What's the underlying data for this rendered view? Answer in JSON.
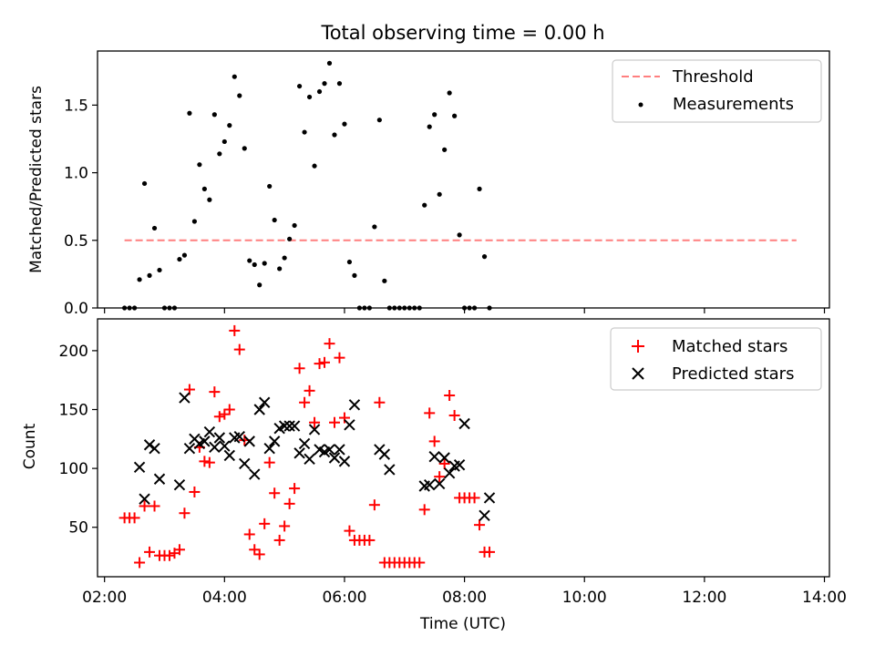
{
  "chart_data": [
    {
      "type": "scatter",
      "title": "Total observing time = 0.00 h",
      "xlabel": "",
      "ylabel": "Matched/Predicted stars",
      "xlim": [
        "01:53",
        "14:05"
      ],
      "ylim": [
        0,
        1.9
      ],
      "x_ticks": [
        "02:00",
        "04:00",
        "06:00",
        "08:00",
        "10:00",
        "12:00",
        "14:00"
      ],
      "y_ticks": [
        "0.0",
        "0.5",
        "1.0",
        "1.5"
      ],
      "legend": {
        "position": "top-right"
      },
      "threshold": {
        "name": "Threshold",
        "value": 0.5,
        "x_start": "02:20",
        "x_end": "13:32",
        "color": "#ff7f7f"
      },
      "series": [
        {
          "name": "Measurements",
          "color": "#000000",
          "x": [
            "02:20",
            "02:25",
            "02:30",
            "02:35",
            "02:40",
            "02:45",
            "02:50",
            "02:55",
            "03:00",
            "03:05",
            "03:10",
            "03:15",
            "03:20",
            "03:25",
            "03:30",
            "03:35",
            "03:40",
            "03:45",
            "03:50",
            "03:55",
            "04:00",
            "04:05",
            "04:10",
            "04:15",
            "04:20",
            "04:25",
            "04:30",
            "04:35",
            "04:40",
            "04:45",
            "04:50",
            "04:55",
            "05:00",
            "05:05",
            "05:10",
            "05:15",
            "05:20",
            "05:25",
            "05:30",
            "05:35",
            "05:40",
            "05:45",
            "05:50",
            "05:55",
            "06:00",
            "06:05",
            "06:10",
            "06:15",
            "06:20",
            "06:25",
            "06:30",
            "06:35",
            "06:40",
            "06:45",
            "06:50",
            "06:55",
            "07:00",
            "07:05",
            "07:10",
            "07:15",
            "07:20",
            "07:25",
            "07:30",
            "07:35",
            "07:40",
            "07:45",
            "07:50",
            "07:55",
            "08:00",
            "08:05",
            "08:10",
            "08:15",
            "08:20",
            "08:25"
          ],
          "y": [
            0.0,
            0.0,
            0.0,
            0.21,
            0.92,
            0.24,
            0.59,
            0.28,
            0.0,
            0.0,
            0.0,
            0.36,
            0.39,
            1.44,
            0.64,
            1.06,
            0.88,
            0.8,
            1.43,
            1.14,
            1.23,
            1.35,
            1.71,
            1.57,
            1.18,
            0.35,
            0.32,
            0.17,
            0.33,
            0.9,
            0.65,
            0.29,
            0.37,
            0.51,
            0.61,
            1.64,
            1.3,
            1.56,
            1.05,
            1.6,
            1.66,
            1.81,
            1.28,
            1.66,
            1.36,
            0.34,
            0.24,
            0.0,
            0.0,
            0.0,
            0.6,
            1.39,
            0.2,
            0.0,
            0.0,
            0.0,
            0.0,
            0.0,
            0.0,
            0.0,
            0.76,
            1.34,
            1.43,
            0.84,
            1.17,
            1.59,
            1.42,
            0.54,
            0.0,
            0.0,
            0.0,
            0.88,
            0.38,
            0.0
          ]
        }
      ]
    },
    {
      "type": "scatter",
      "title": "",
      "xlabel": "Time (UTC)",
      "ylabel": "Count",
      "xlim": [
        "01:53",
        "14:05"
      ],
      "ylim": [
        8,
        227
      ],
      "x_ticks": [
        "02:00",
        "04:00",
        "06:00",
        "08:00",
        "10:00",
        "12:00",
        "14:00"
      ],
      "y_ticks": [
        "50",
        "100",
        "150",
        "200"
      ],
      "legend": {
        "position": "top-right"
      },
      "series": [
        {
          "name": "Matched stars",
          "marker": "plus",
          "color": "#ff0000",
          "x": [
            "02:20",
            "02:25",
            "02:30",
            "02:35",
            "02:40",
            "02:45",
            "02:50",
            "02:55",
            "03:00",
            "03:05",
            "03:10",
            "03:15",
            "03:20",
            "03:25",
            "03:30",
            "03:35",
            "03:40",
            "03:45",
            "03:50",
            "03:55",
            "04:00",
            "04:05",
            "04:10",
            "04:15",
            "04:20",
            "04:25",
            "04:30",
            "04:35",
            "04:40",
            "04:45",
            "04:50",
            "04:55",
            "05:00",
            "05:05",
            "05:10",
            "05:15",
            "05:20",
            "05:25",
            "05:30",
            "05:35",
            "05:40",
            "05:45",
            "05:50",
            "05:55",
            "06:00",
            "06:05",
            "06:10",
            "06:15",
            "06:20",
            "06:25",
            "06:30",
            "06:35",
            "06:40",
            "06:45",
            "06:50",
            "06:55",
            "07:00",
            "07:05",
            "07:10",
            "07:15",
            "07:20",
            "07:25",
            "07:30",
            "07:35",
            "07:40",
            "07:45",
            "07:50",
            "07:55",
            "08:00",
            "08:05",
            "08:10",
            "08:15",
            "08:20",
            "08:25"
          ],
          "y": [
            58,
            58,
            58,
            20,
            68,
            29,
            68,
            26,
            26,
            26,
            28,
            31,
            62,
            167,
            80,
            118,
            106,
            105,
            165,
            144,
            146,
            150,
            217,
            201,
            124,
            44,
            31,
            27,
            53,
            105,
            79,
            39,
            51,
            70,
            83,
            185,
            156,
            166,
            139,
            189,
            190,
            206,
            139,
            194,
            143,
            47,
            39,
            39,
            39,
            39,
            69,
            156,
            20,
            20,
            20,
            20,
            20,
            20,
            20,
            20,
            65,
            147,
            123,
            93,
            104,
            162,
            145,
            75,
            75,
            75,
            75,
            52,
            29,
            29
          ]
        },
        {
          "name": "Predicted stars",
          "marker": "x",
          "color": "#000000",
          "x": [
            "02:35",
            "02:40",
            "02:45",
            "02:50",
            "02:55",
            "03:15",
            "03:20",
            "03:25",
            "03:30",
            "03:35",
            "03:40",
            "03:45",
            "03:50",
            "03:55",
            "04:00",
            "04:05",
            "04:10",
            "04:15",
            "04:20",
            "04:25",
            "04:30",
            "04:35",
            "04:40",
            "04:45",
            "04:50",
            "04:55",
            "05:00",
            "05:05",
            "05:10",
            "05:15",
            "05:20",
            "05:25",
            "05:30",
            "05:35",
            "05:40",
            "05:45",
            "05:50",
            "05:55",
            "06:00",
            "06:05",
            "06:10",
            "06:35",
            "06:40",
            "06:45",
            "07:20",
            "07:25",
            "07:30",
            "07:35",
            "07:40",
            "07:45",
            "07:50",
            "07:55",
            "08:00",
            "08:20",
            "08:25"
          ],
          "y": [
            101,
            74,
            120,
            117,
            91,
            86,
            160,
            117,
            125,
            121,
            123,
            131,
            118,
            126,
            119,
            111,
            126,
            127,
            104,
            123,
            95,
            150,
            156,
            117,
            123,
            134,
            136,
            136,
            136,
            113,
            121,
            108,
            133,
            116,
            114,
            116,
            109,
            116,
            106,
            137,
            154,
            116,
            112,
            99,
            85,
            86,
            110,
            87,
            109,
            96,
            102,
            103,
            138,
            60,
            75
          ]
        }
      ]
    }
  ]
}
